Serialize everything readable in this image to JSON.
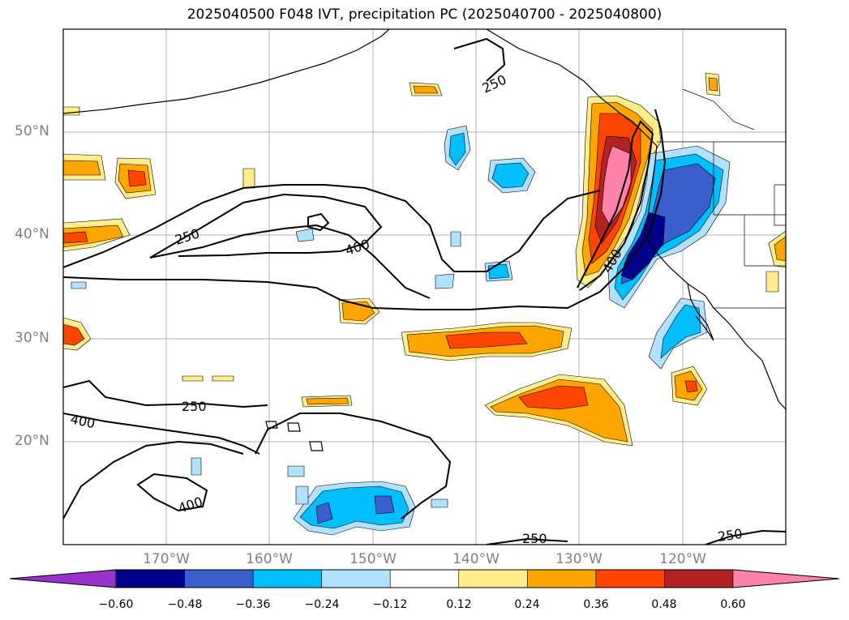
{
  "title": "2025040500 F048 IVT, precipitation PC (2025040700 - 2025040800)",
  "map": {
    "lat_labels": [
      "50°N",
      "40°N",
      "30°N",
      "20°N"
    ],
    "lon_labels": [
      "170°W",
      "160°W",
      "150°W",
      "140°W",
      "130°W",
      "120°W"
    ],
    "ivt_contour_labels": [
      "250",
      "250",
      "400",
      "400",
      "250",
      "400",
      "400",
      "250",
      "250"
    ]
  },
  "colorbar": {
    "ticks": [
      "−0.60",
      "−0.48",
      "−0.36",
      "−0.24",
      "−0.12",
      "0.12",
      "0.24",
      "0.36",
      "0.48",
      "0.60"
    ],
    "colors": [
      "#9932cc",
      "#00008b",
      "#3a5fcd",
      "#00bfff",
      "#b0e2ff",
      "#ffffff",
      "#ffec8b",
      "#ffa500",
      "#ff4500",
      "#b22222",
      "#ff82ab"
    ]
  }
}
